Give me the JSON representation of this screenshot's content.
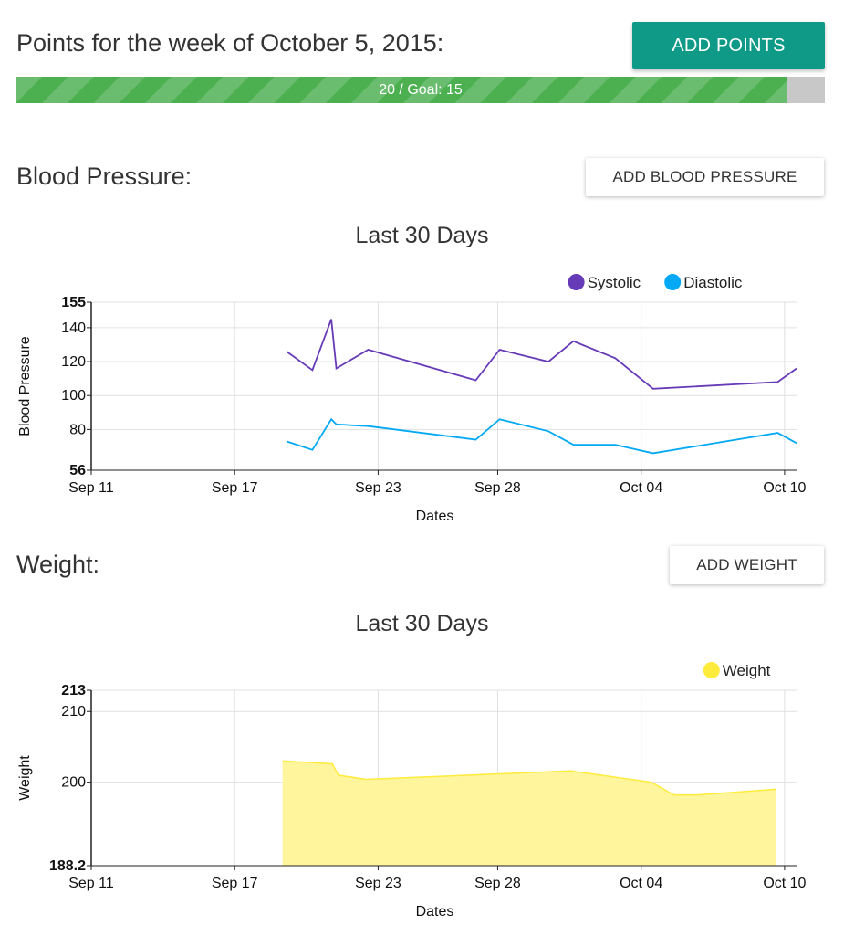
{
  "header": {
    "title": "Points for the week of October 5, 2015:",
    "add_points_label": "ADD POINTS"
  },
  "progress": {
    "text": "20 / Goal: 15",
    "fill_fraction": 0.954,
    "fill_color": "#4caf50",
    "track_color": "#c8c8c8"
  },
  "blood_pressure": {
    "section_title": "Blood Pressure:",
    "add_label": "ADD BLOOD PRESSURE",
    "chart_title": "Last 30 Days"
  },
  "weight": {
    "section_title": "Weight:",
    "add_label": "ADD WEIGHT",
    "chart_title": "Last 30 Days"
  },
  "chart_data": [
    {
      "type": "line",
      "title": "Last 30 Days",
      "xlabel": "Dates",
      "ylabel": "Blood Pressure",
      "ylim": [
        56,
        155
      ],
      "y_ticks": [
        56,
        80,
        100,
        120,
        140,
        155
      ],
      "y_ticks_bold": [
        56,
        155
      ],
      "x_tick_dates": [
        "2015-09-11",
        "2015-09-17",
        "2015-09-23",
        "2015-09-28",
        "2015-10-04",
        "2015-10-10"
      ],
      "x_tick_labels": [
        "Sep 11",
        "Sep 17",
        "Sep 23",
        "Sep 28",
        "Oct 04",
        "Oct 10"
      ],
      "xlim": [
        "2015-09-11",
        "2015-10-10T12:00"
      ],
      "grid": true,
      "legend_position": "top-right",
      "series": [
        {
          "name": "Systolic",
          "color": "#673ab7",
          "points": [
            [
              "2015-09-19T04:00",
              126
            ],
            [
              "2015-09-20T06:00",
              115
            ],
            [
              "2015-09-21T01:00",
              145
            ],
            [
              "2015-09-21T06:00",
              116
            ],
            [
              "2015-09-22T14:00",
              127
            ],
            [
              "2015-09-27T02:00",
              109
            ],
            [
              "2015-09-28T02:00",
              127
            ],
            [
              "2015-09-30T03:00",
              120
            ],
            [
              "2015-10-01T04:00",
              132
            ],
            [
              "2015-10-02T22:00",
              122
            ],
            [
              "2015-10-04T12:00",
              104
            ],
            [
              "2015-10-09T17:00",
              108
            ],
            [
              "2015-10-10T12:00",
              116
            ]
          ]
        },
        {
          "name": "Diastolic",
          "color": "#03a9f4",
          "points": [
            [
              "2015-09-19T04:00",
              73
            ],
            [
              "2015-09-20T06:00",
              68
            ],
            [
              "2015-09-21T01:00",
              86
            ],
            [
              "2015-09-21T06:00",
              83
            ],
            [
              "2015-09-22T14:00",
              82
            ],
            [
              "2015-09-27T02:00",
              74
            ],
            [
              "2015-09-28T02:00",
              86
            ],
            [
              "2015-09-30T03:00",
              79
            ],
            [
              "2015-10-01T04:00",
              71
            ],
            [
              "2015-10-02T22:00",
              71
            ],
            [
              "2015-10-04T12:00",
              66
            ],
            [
              "2015-10-09T17:00",
              78
            ],
            [
              "2015-10-10T12:00",
              72
            ]
          ]
        }
      ]
    },
    {
      "type": "area",
      "title": "Last 30 Days",
      "xlabel": "Dates",
      "ylabel": "Weight",
      "ylim": [
        188.2,
        213
      ],
      "y_ticks": [
        188.2,
        200,
        210,
        213
      ],
      "y_ticks_bold": [
        188.2,
        213
      ],
      "x_tick_dates": [
        "2015-09-11",
        "2015-09-17",
        "2015-09-23",
        "2015-09-28",
        "2015-10-04",
        "2015-10-10"
      ],
      "x_tick_labels": [
        "Sep 11",
        "Sep 17",
        "Sep 23",
        "Sep 28",
        "Oct 04",
        "Oct 10"
      ],
      "xlim": [
        "2015-09-11",
        "2015-10-10T12:00"
      ],
      "grid": true,
      "legend_position": "top-right",
      "series": [
        {
          "name": "Weight",
          "color": "#ffeb3b",
          "fill": "#fff59d",
          "points": [
            [
              "2015-09-19T00:00",
              203.0
            ],
            [
              "2015-09-21T02:00",
              202.6
            ],
            [
              "2015-09-21T08:00",
              201.0
            ],
            [
              "2015-09-22T12:00",
              200.4
            ],
            [
              "2015-10-01T01:00",
              201.6
            ],
            [
              "2015-10-04T10:00",
              200.0
            ],
            [
              "2015-10-05T09:00",
              198.2
            ],
            [
              "2015-10-06T09:00",
              198.2
            ],
            [
              "2015-10-09T15:00",
              199.0
            ]
          ]
        }
      ]
    }
  ]
}
